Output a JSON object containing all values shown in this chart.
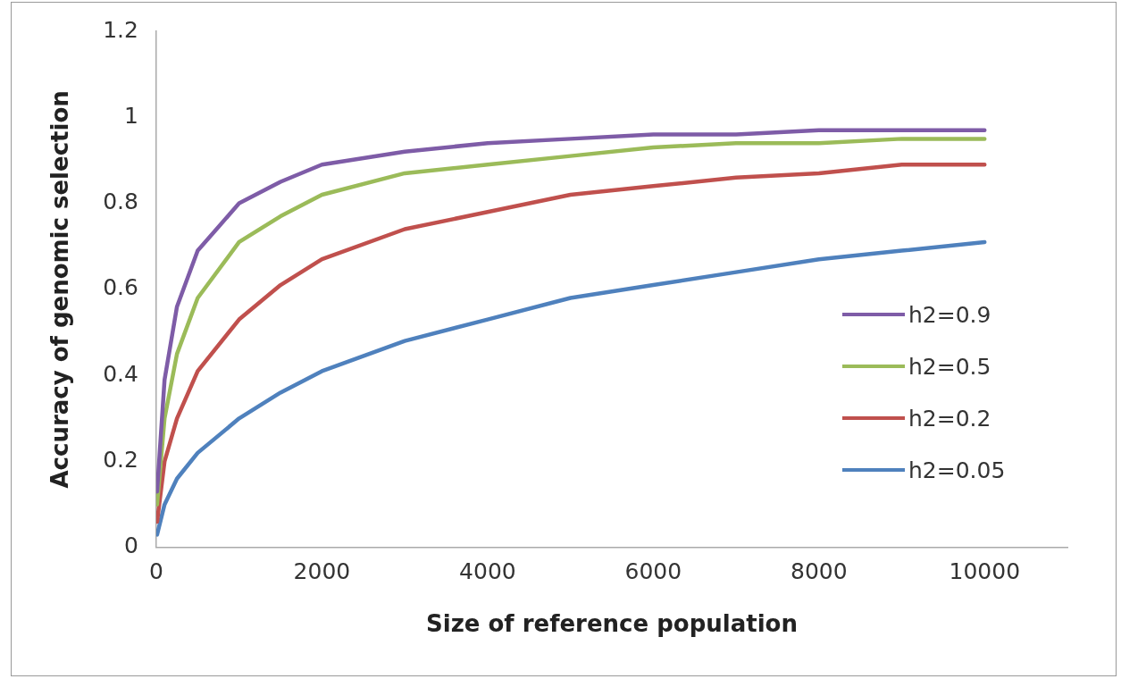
{
  "chart_data": {
    "type": "line",
    "xlabel": "Size of reference population",
    "ylabel": "Accuracy of genomic selection",
    "x": [
      10,
      100,
      250,
      500,
      1000,
      1500,
      2000,
      3000,
      4000,
      5000,
      6000,
      7000,
      8000,
      9000,
      10000
    ],
    "series": [
      {
        "name": "h2=0.9",
        "color": "#7e5ca7",
        "values": [
          0.13,
          0.39,
          0.56,
          0.69,
          0.8,
          0.85,
          0.89,
          0.92,
          0.94,
          0.95,
          0.96,
          0.96,
          0.97,
          0.97,
          0.97
        ]
      },
      {
        "name": "h2=0.5",
        "color": "#9bbb59",
        "values": [
          0.1,
          0.3,
          0.45,
          0.58,
          0.71,
          0.77,
          0.82,
          0.87,
          0.89,
          0.91,
          0.93,
          0.94,
          0.94,
          0.95,
          0.95
        ]
      },
      {
        "name": "h2=0.2",
        "color": "#c0504d",
        "values": [
          0.06,
          0.2,
          0.3,
          0.41,
          0.53,
          0.61,
          0.67,
          0.74,
          0.78,
          0.82,
          0.84,
          0.86,
          0.87,
          0.89,
          0.89
        ]
      },
      {
        "name": "h2=0.05",
        "color": "#4f81bd",
        "values": [
          0.03,
          0.1,
          0.16,
          0.22,
          0.3,
          0.36,
          0.41,
          0.48,
          0.53,
          0.58,
          0.61,
          0.64,
          0.67,
          0.69,
          0.71
        ]
      }
    ],
    "xlim": [
      0,
      11000
    ],
    "xticks": [
      0,
      2000,
      4000,
      6000,
      8000,
      10000
    ],
    "ylim": [
      0,
      1.2
    ],
    "yticks": [
      0,
      0.2,
      0.4,
      0.6,
      0.8,
      1,
      1.2
    ],
    "grid": false,
    "legend": "right",
    "marker": "none",
    "line_style": "solid"
  }
}
